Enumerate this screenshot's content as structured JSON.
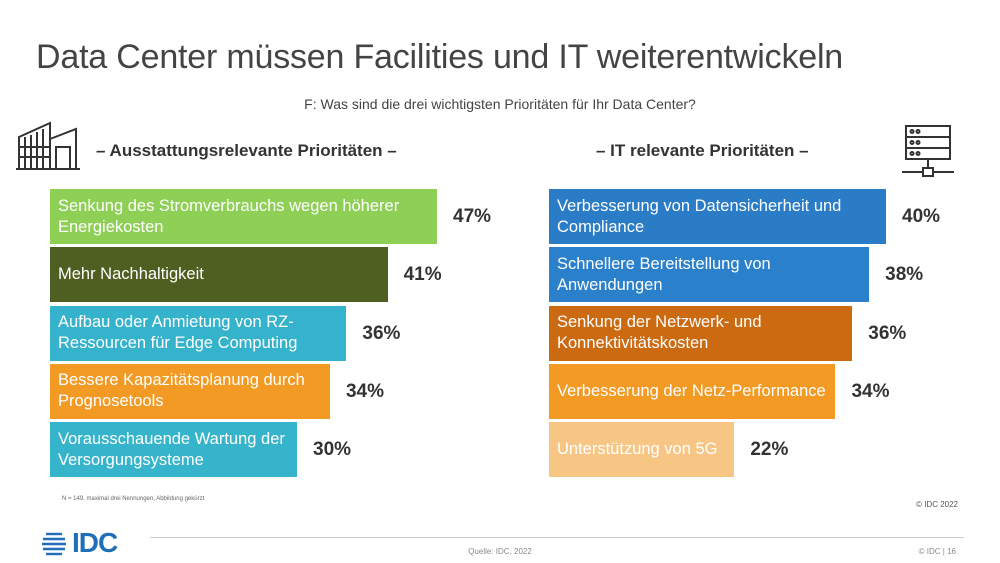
{
  "title": "Data Center müssen Facilities und IT weiterentwickeln",
  "question": "F: Was sind die drei wichtigsten Prioritäten für Ihr Data Center?",
  "left_heading": "– Ausstattungsrelevante Prioritäten –",
  "right_heading": "– IT relevante Prioritäten –",
  "footnote": "N = 149, maximal drei Nennungen, Abbildung gekürzt",
  "copyright": "© IDC 2022",
  "source": "Quelle: IDC, 2022",
  "page_meta": "© IDC  |  16",
  "logo_text": "IDC",
  "icons": {
    "left": "building-icon",
    "right": "server-icon"
  },
  "chart_data": [
    {
      "type": "bar",
      "orientation": "horizontal",
      "title": "– Ausstattungsrelevante Prioritäten –",
      "categories": [
        "Senkung des Stromverbrauchs wegen höherer Energiekosten",
        "Mehr Nachhaltigkeit",
        "Aufbau oder Anmietung von RZ-Ressourcen für Edge Computing",
        "Bessere Kapazitätsplanung durch Prognosetools",
        "Vorausschauende Wartung der Versorgungsysteme"
      ],
      "values": [
        47,
        41,
        36,
        34,
        30
      ],
      "labels": [
        "47%",
        "41%",
        "36%",
        "34%",
        "30%"
      ],
      "colors": [
        "#8ecf56",
        "#4f5f22",
        "#35b2cc",
        "#f29a24",
        "#36b4cc"
      ],
      "unit": "%",
      "grid": false
    },
    {
      "type": "bar",
      "orientation": "horizontal",
      "title": "– IT relevante Prioritäten –",
      "categories": [
        "Verbesserung von Datensicherheit und Compliance",
        "Schnellere Bereitstellung von Anwendungen",
        "Senkung der Netzwerk- und Konnektivitätskosten",
        "Verbesserung der Netz-Performance",
        "Unterstützung von 5G"
      ],
      "values": [
        40,
        38,
        36,
        34,
        22
      ],
      "labels": [
        "40%",
        "38%",
        "36%",
        "34%",
        "22%"
      ],
      "colors": [
        "#2a7cc7",
        "#2b80cc",
        "#cc6a12",
        "#f29a24",
        "#f7c685"
      ],
      "unit": "%",
      "grid": false
    }
  ]
}
